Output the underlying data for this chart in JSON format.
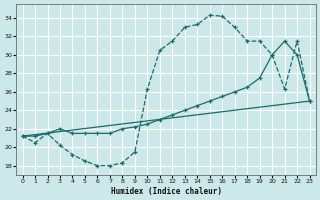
{
  "xlabel": "Humidex (Indice chaleur)",
  "bg_color": "#cce8e8",
  "grid_color": "#b0d4d4",
  "line_color": "#1a6b6b",
  "x_ticks": [
    0,
    1,
    2,
    3,
    4,
    5,
    6,
    7,
    8,
    9,
    10,
    11,
    12,
    13,
    14,
    15,
    16,
    17,
    18,
    19,
    20,
    21,
    22,
    23
  ],
  "y_ticks": [
    18,
    20,
    22,
    24,
    26,
    28,
    30,
    32,
    34
  ],
  "xlim": [
    -0.5,
    23.5
  ],
  "ylim": [
    17.0,
    35.5
  ],
  "curve1_x": [
    0,
    1,
    2,
    3,
    4,
    5,
    6,
    7,
    8,
    9,
    10,
    11,
    12,
    13,
    14,
    15,
    16,
    17,
    18,
    19,
    20,
    21,
    22,
    23
  ],
  "curve1_y": [
    21.2,
    20.5,
    21.5,
    20.2,
    19.2,
    18.5,
    18.0,
    18.0,
    18.3,
    19.5,
    26.3,
    30.5,
    31.5,
    33.0,
    33.3,
    34.3,
    34.2,
    33.0,
    31.5,
    31.5,
    30.0,
    26.3,
    31.5,
    25.0
  ],
  "curve2_x": [
    0,
    23
  ],
  "curve2_y": [
    21.2,
    25.0
  ],
  "curve3_x": [
    0,
    1,
    2,
    3,
    4,
    5,
    6,
    7,
    8,
    9,
    10,
    11,
    12,
    13,
    14,
    15,
    16,
    17,
    18,
    19,
    20,
    21,
    22,
    23
  ],
  "curve3_y": [
    21.2,
    21.2,
    21.5,
    22.0,
    21.5,
    21.5,
    21.5,
    21.5,
    22.0,
    22.2,
    22.5,
    23.0,
    23.5,
    24.0,
    24.5,
    25.0,
    25.5,
    26.0,
    26.5,
    27.5,
    30.0,
    31.5,
    30.0,
    25.0
  ]
}
